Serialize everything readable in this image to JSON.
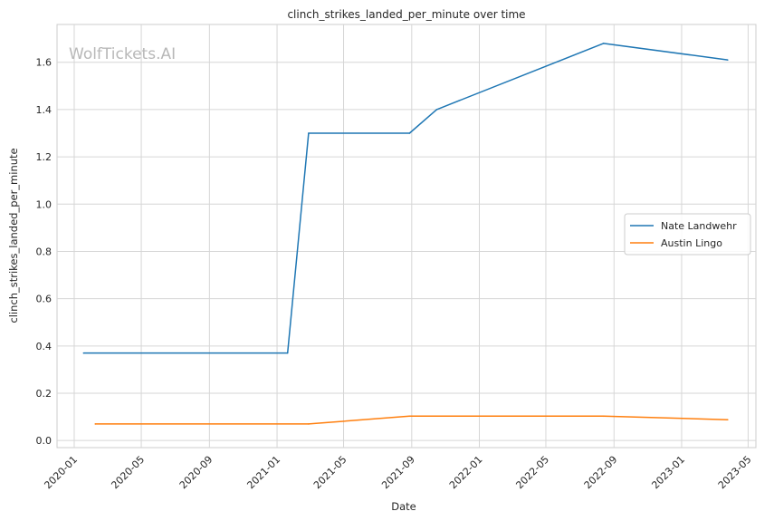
{
  "chart_data": {
    "type": "line",
    "title": "clinch_strikes_landed_per_minute over time",
    "xlabel": "Date",
    "ylabel": "clinch_strikes_landed_per_minute",
    "watermark": "WolfTickets.AI",
    "xlim": [
      "2019-12-01",
      "2023-05-15"
    ],
    "ylim": [
      -0.03,
      1.76
    ],
    "x_ticks": [
      "2020-01",
      "2020-05",
      "2020-09",
      "2021-01",
      "2021-05",
      "2021-09",
      "2022-01",
      "2022-05",
      "2022-09",
      "2023-01",
      "2023-05"
    ],
    "y_ticks": [
      "0.0",
      "0.2",
      "0.4",
      "0.6",
      "0.8",
      "1.0",
      "1.2",
      "1.4",
      "1.6"
    ],
    "grid": true,
    "legend_position": "center-right",
    "series": [
      {
        "name": "Nate Landwehr",
        "color": "#1f77b4",
        "points": [
          {
            "x": "2020-01-18",
            "y": 0.37
          },
          {
            "x": "2021-01-20",
            "y": 0.37
          },
          {
            "x": "2021-02-27",
            "y": 1.3
          },
          {
            "x": "2021-08-28",
            "y": 1.3
          },
          {
            "x": "2021-10-16",
            "y": 1.4
          },
          {
            "x": "2022-08-13",
            "y": 1.68
          },
          {
            "x": "2023-03-25",
            "y": 1.61
          }
        ]
      },
      {
        "name": "Austin Lingo",
        "color": "#ff7f0e",
        "points": [
          {
            "x": "2020-02-08",
            "y": 0.07
          },
          {
            "x": "2021-02-27",
            "y": 0.07
          },
          {
            "x": "2021-08-28",
            "y": 0.103
          },
          {
            "x": "2022-08-13",
            "y": 0.103
          },
          {
            "x": "2023-03-25",
            "y": 0.088
          }
        ]
      }
    ]
  }
}
